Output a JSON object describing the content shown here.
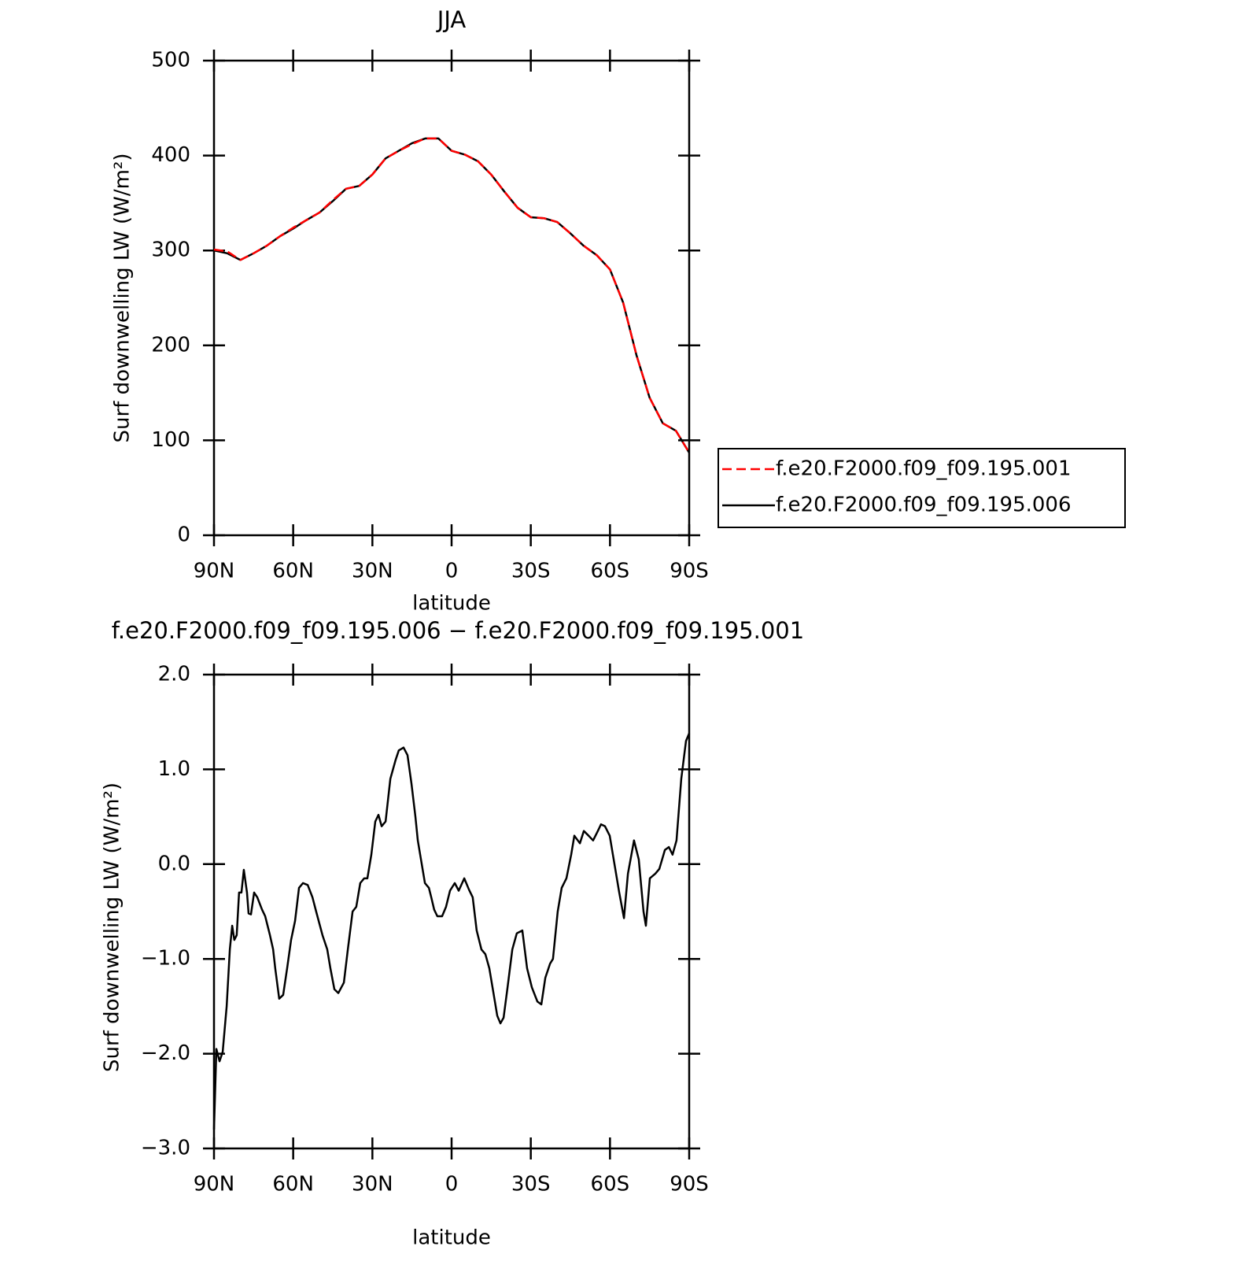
{
  "chart_data": [
    {
      "type": "line",
      "title": "JJA",
      "xlabel": "latitude",
      "ylabel": "Surf downwelling LW (W/m²)",
      "x": [
        90,
        85,
        80,
        75,
        70,
        65,
        60,
        55,
        50,
        45,
        40,
        35,
        30,
        25,
        20,
        15,
        10,
        5,
        0,
        -5,
        -10,
        -15,
        -20,
        -25,
        -30,
        -35,
        -40,
        -45,
        -50,
        -55,
        -60,
        -65,
        -70,
        -75,
        -80,
        -85,
        -90
      ],
      "series": [
        {
          "name": "f.e20.F2000.f09_f09.195.001",
          "color": "#ff0000",
          "dashed": true,
          "values": [
            301,
            299,
            290,
            297,
            305,
            315,
            324,
            332,
            340,
            353,
            365,
            368,
            380,
            397,
            405,
            412,
            418,
            418,
            405,
            401,
            394,
            380,
            362,
            345,
            335,
            334,
            330,
            318,
            305,
            295,
            280,
            245,
            190,
            145,
            118,
            110,
            87
          ]
        },
        {
          "name": "f.e20.F2000.f09_f09.195.006",
          "color": "#000000",
          "dashed": false,
          "values": [
            300,
            297,
            290,
            297,
            305,
            315,
            323,
            332,
            340,
            352,
            365,
            368,
            380,
            397,
            405,
            413,
            418,
            418,
            405,
            401,
            394,
            380,
            362,
            345,
            335,
            334,
            330,
            318,
            305,
            295,
            280,
            245,
            190,
            145,
            118,
            110,
            87
          ]
        }
      ],
      "xlim": [
        90,
        -90
      ],
      "xticks": [
        {
          "value": 90,
          "label": "90N"
        },
        {
          "value": 60,
          "label": "60N"
        },
        {
          "value": 30,
          "label": "30N"
        },
        0,
        {
          "value": -30,
          "label": "30S"
        },
        {
          "value": -60,
          "label": "60S"
        },
        {
          "value": -90,
          "label": "90S"
        }
      ],
      "ylim": [
        0,
        500
      ],
      "yticks": [
        0,
        100,
        200,
        300,
        400,
        500
      ],
      "legend": "right"
    },
    {
      "type": "line",
      "title": "f.e20.F2000.f09_f09.195.006 − f.e20.F2000.f09_f09.195.001",
      "xlabel": "latitude",
      "ylabel": "Surf downwelling LW (W/m²)",
      "x": [
        90,
        89.1,
        87.9,
        86.7,
        85.2,
        84.0,
        83.1,
        82.3,
        81.4,
        80.5,
        79.6,
        78.7,
        77.5,
        76.9,
        76.0,
        74.8,
        73.6,
        71.8,
        70.6,
        68.8,
        67.6,
        66.8,
        65.3,
        63.8,
        62.3,
        60.8,
        59.3,
        57.8,
        56.3,
        54.5,
        52.7,
        51.3,
        48.9,
        47.1,
        45.9,
        44.4,
        42.9,
        40.8,
        39.3,
        37.5,
        36.1,
        34.6,
        33.1,
        31.9,
        30.4,
        28.9,
        27.7,
        26.5,
        25.0,
        23.2,
        21.2,
        20.0,
        18.2,
        16.7,
        15.2,
        13.7,
        12.8,
        11.3,
        10.1,
        8.6,
        7.7,
        6.6,
        5.4,
        3.6,
        2.1,
        0.6,
        -1.2,
        -2.7,
        -4.8,
        -6.6,
        -8.0,
        -9.5,
        -11.3,
        -12.8,
        -14.3,
        -15.8,
        -17.3,
        -18.5,
        -19.7,
        -21.2,
        -23.0,
        -24.7,
        -26.8,
        -28.6,
        -30.4,
        -32.5,
        -34.0,
        -35.5,
        -37.3,
        -38.4,
        -40.2,
        -41.7,
        -43.5,
        -45.3,
        -46.5,
        -48.6,
        -50.1,
        -51.9,
        -53.6,
        -55.4,
        -56.6,
        -58.1,
        -59.9,
        -61.7,
        -63.5,
        -65.3,
        -66.8,
        -69.1,
        -70.9,
        -72.7,
        -73.6,
        -75.1,
        -77.2,
        -78.7,
        -80.8,
        -82.3,
        -83.7,
        -85.2,
        -87.0,
        -88.8,
        -90
      ],
      "values": [
        -2.8,
        -1.95,
        -2.08,
        -1.98,
        -1.5,
        -0.9,
        -0.65,
        -0.8,
        -0.75,
        -0.3,
        -0.3,
        -0.06,
        -0.3,
        -0.52,
        -0.53,
        -0.3,
        -0.35,
        -0.48,
        -0.55,
        -0.75,
        -0.9,
        -1.1,
        -1.42,
        -1.38,
        -1.1,
        -0.8,
        -0.6,
        -0.25,
        -0.2,
        -0.22,
        -0.35,
        -0.5,
        -0.75,
        -0.9,
        -1.1,
        -1.32,
        -1.36,
        -1.25,
        -0.9,
        -0.5,
        -0.45,
        -0.2,
        -0.15,
        -0.15,
        0.1,
        0.45,
        0.52,
        0.4,
        0.45,
        0.9,
        1.1,
        1.2,
        1.23,
        1.15,
        0.85,
        0.5,
        0.25,
        0.0,
        -0.2,
        -0.25,
        -0.35,
        -0.48,
        -0.55,
        -0.55,
        -0.45,
        -0.28,
        -0.2,
        -0.28,
        -0.15,
        -0.27,
        -0.35,
        -0.7,
        -0.9,
        -0.95,
        -1.1,
        -1.35,
        -1.6,
        -1.68,
        -1.62,
        -1.3,
        -0.9,
        -0.73,
        -0.7,
        -1.1,
        -1.3,
        -1.45,
        -1.48,
        -1.2,
        -1.05,
        -1.0,
        -0.5,
        -0.25,
        -0.15,
        0.1,
        0.3,
        0.22,
        0.35,
        0.3,
        0.25,
        0.35,
        0.42,
        0.4,
        0.3,
        0.0,
        -0.3,
        -0.57,
        -0.1,
        0.25,
        0.05,
        -0.5,
        -0.65,
        -0.15,
        -0.1,
        -0.05,
        0.15,
        0.18,
        0.1,
        0.25,
        0.9,
        1.3,
        1.38
      ],
      "color": "#000000",
      "xlim": [
        90,
        -90
      ],
      "xticks": [
        {
          "value": 90,
          "label": "90N"
        },
        {
          "value": 60,
          "label": "60N"
        },
        {
          "value": 30,
          "label": "30N"
        },
        0,
        {
          "value": -30,
          "label": "30S"
        },
        {
          "value": -60,
          "label": "60S"
        },
        {
          "value": -90,
          "label": "90S"
        }
      ],
      "ylim": [
        -3,
        2
      ],
      "yticks": [
        {
          "value": -3,
          "label": "−3.0"
        },
        {
          "value": -2,
          "label": "−2.0"
        },
        {
          "value": -1,
          "label": "−1.0"
        },
        {
          "value": 0,
          "label": "0.0"
        },
        {
          "value": 1,
          "label": "1.0"
        },
        {
          "value": 2,
          "label": "2.0"
        }
      ]
    }
  ]
}
